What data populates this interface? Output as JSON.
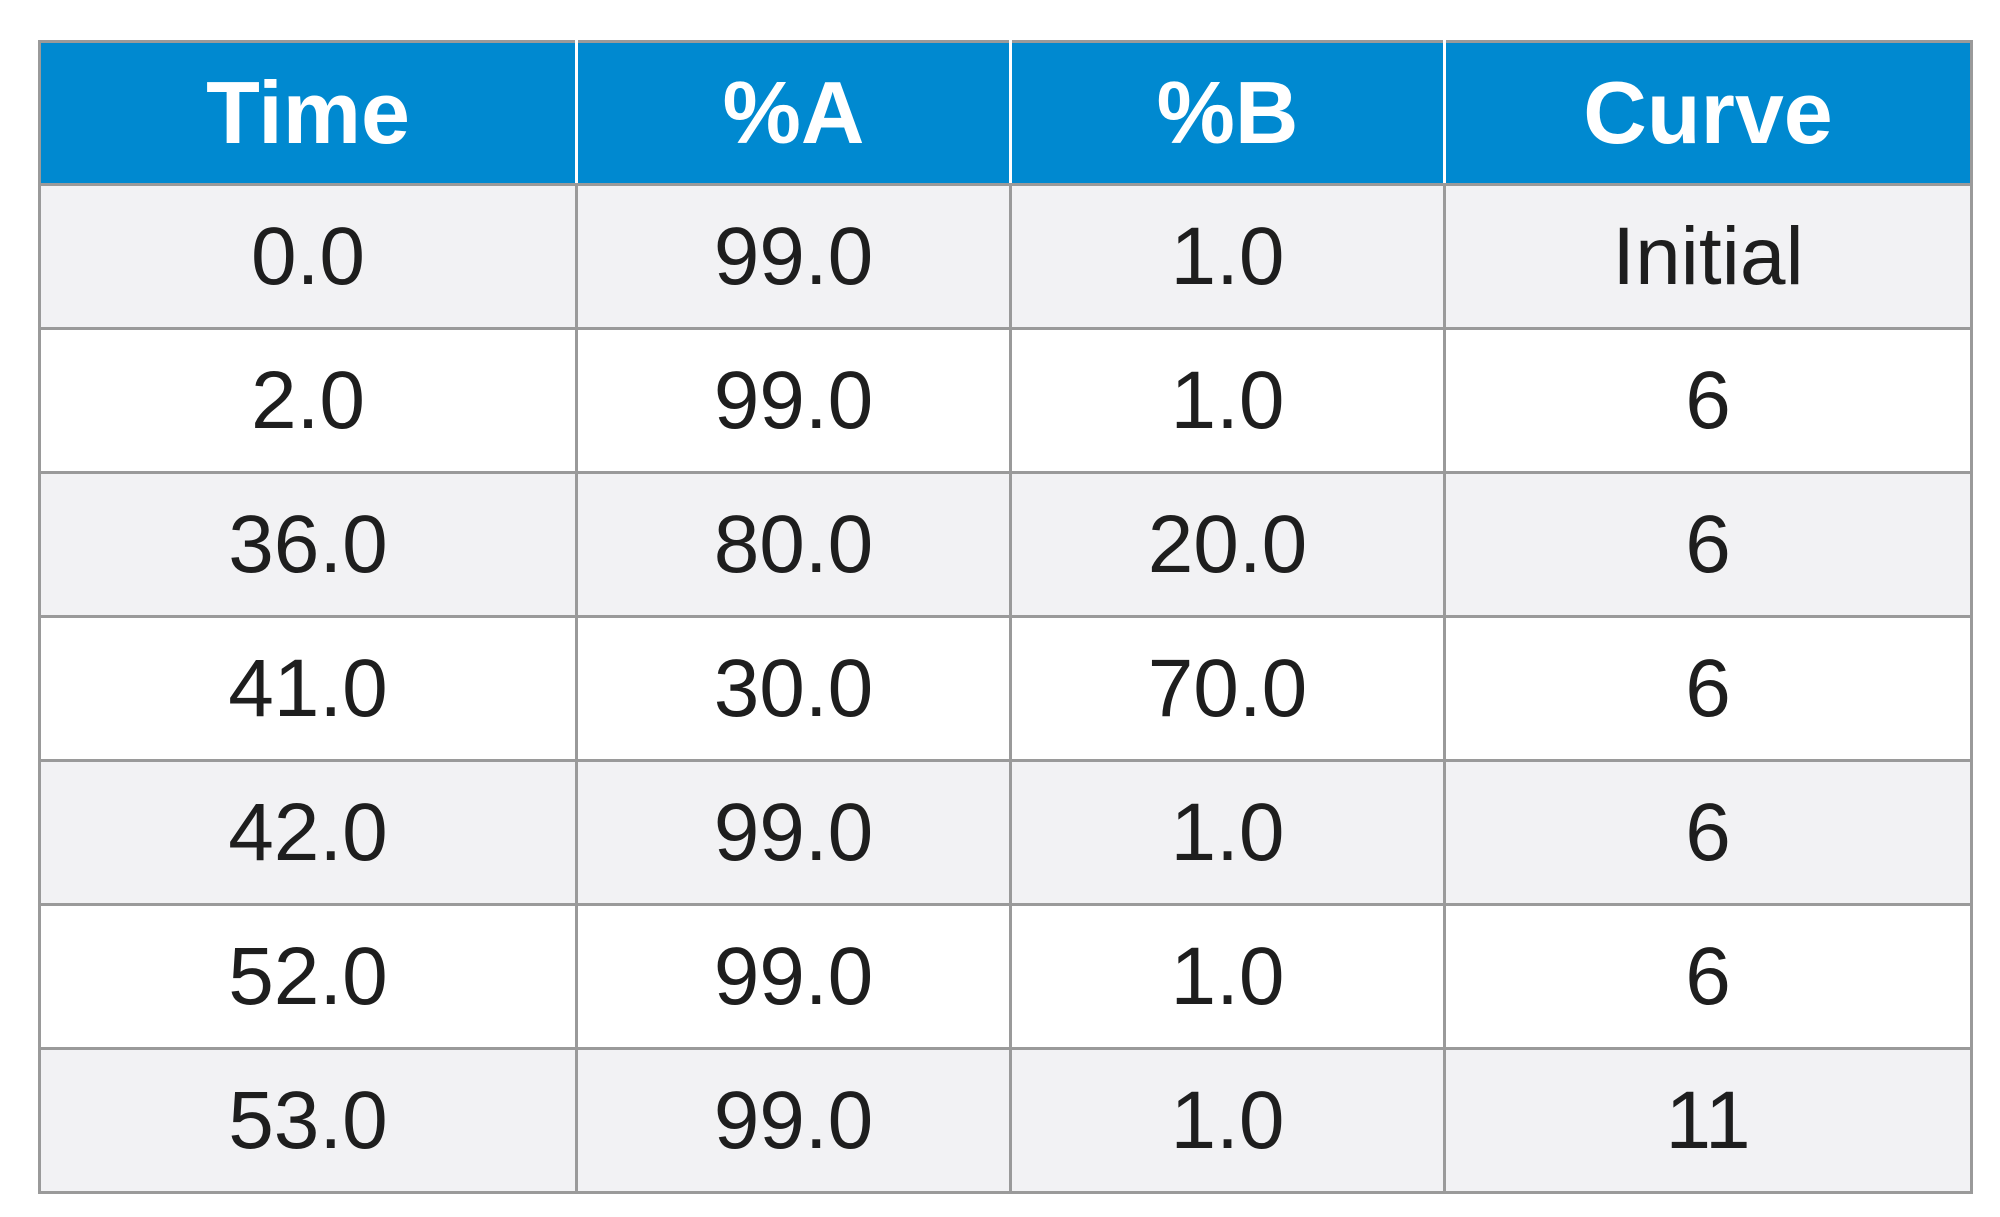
{
  "table": {
    "headers": [
      "Time",
      "%A",
      "%B",
      "Curve"
    ],
    "rows": [
      [
        "0.0",
        "99.0",
        "1.0",
        "Initial"
      ],
      [
        "2.0",
        "99.0",
        "1.0",
        "6"
      ],
      [
        "36.0",
        "80.0",
        "20.0",
        "6"
      ],
      [
        "41.0",
        "30.0",
        "70.0",
        "6"
      ],
      [
        "42.0",
        "99.0",
        "1.0",
        "6"
      ],
      [
        "52.0",
        "99.0",
        "1.0",
        "6"
      ],
      [
        "53.0",
        "99.0",
        "1.0",
        "11"
      ]
    ],
    "colors": {
      "header_bg": "#0089d0",
      "header_text": "#ffffff",
      "row_alt_bg": "#f2f2f4",
      "grid": "#9a9a9a"
    }
  }
}
